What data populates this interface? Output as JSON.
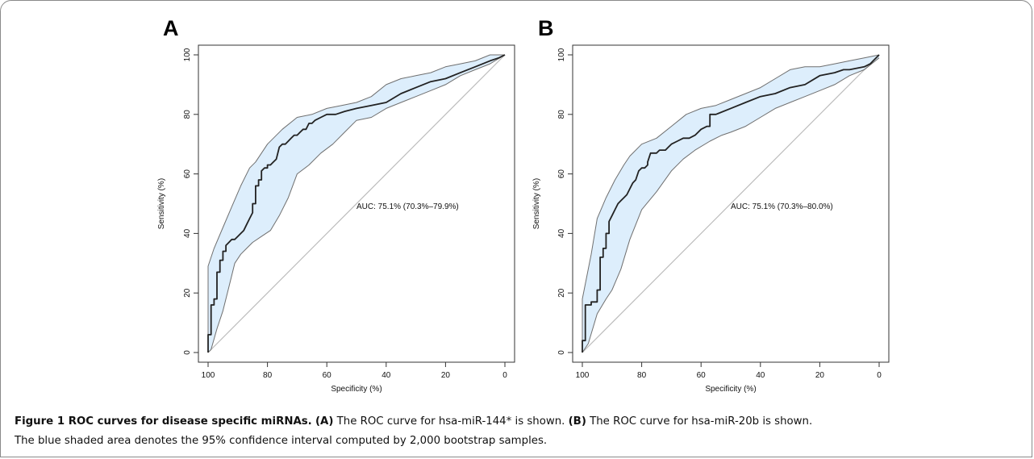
{
  "panels": [
    {
      "letter": "A",
      "auc_label": "AUC: 75.1% (70.3%–79.9%)"
    },
    {
      "letter": "B",
      "auc_label": "AUC: 75.1% (70.3%–80.0%)"
    }
  ],
  "caption": {
    "title": "Figure 1 ROC curves for disease specific miRNAs.",
    "a_ref": "(A)",
    "a_text": " The ROC curve for hsa-miR-144* is shown. ",
    "b_ref": "(B)",
    "b_text": " The ROC curve for hsa-miR-20b is shown.",
    "line2": "The blue shaded area denotes the 95% confidence interval computed by 2,000 bootstrap samples."
  },
  "colors": {
    "band_fill": "#ddeefc",
    "band_edge": "#6f6f6f",
    "curve": "#222222",
    "diagonal": "#bbbbbb"
  },
  "chart_data": [
    {
      "type": "line",
      "title": "",
      "xlabel": "Specificity (%)",
      "ylabel": "Sensitivity (%)",
      "xlim": [
        100,
        0
      ],
      "ylim": [
        0,
        100
      ],
      "x_reversed": true,
      "xticks": [
        100,
        80,
        60,
        40,
        20,
        0
      ],
      "yticks": [
        0,
        20,
        40,
        60,
        80,
        100
      ],
      "annotation": "AUC: 75.1% (70.3%–79.9%)",
      "series": [
        {
          "role": "roc",
          "x": [
            100,
            100,
            99,
            99,
            98,
            98,
            97,
            97,
            96,
            96,
            95,
            95,
            94,
            94,
            93,
            92,
            91,
            90,
            89,
            88,
            87,
            86,
            85,
            85,
            84,
            84,
            83,
            83,
            82,
            82,
            81,
            80,
            80,
            79,
            78,
            77,
            76,
            75,
            74,
            73,
            72,
            71,
            70,
            69,
            68,
            67,
            66,
            65,
            64,
            62,
            60,
            57,
            54,
            50,
            45,
            40,
            35,
            30,
            25,
            20,
            15,
            10,
            5,
            2,
            0
          ],
          "y": [
            0,
            6,
            6,
            16,
            16,
            18,
            18,
            27,
            27,
            31,
            31,
            34,
            34,
            36,
            37,
            38,
            38,
            39,
            40,
            41,
            43,
            45,
            47,
            50,
            50,
            56,
            56,
            58,
            58,
            61,
            62,
            62,
            63,
            63,
            64,
            65,
            69,
            70,
            70,
            71,
            72,
            73,
            73,
            74,
            75,
            75,
            77,
            77,
            78,
            79,
            80,
            80,
            81,
            82,
            83,
            84,
            87,
            89,
            91,
            92,
            94,
            96,
            98,
            99,
            100
          ]
        },
        {
          "role": "ci_upper",
          "x": [
            100,
            100,
            98,
            95,
            92,
            89,
            86,
            84,
            80,
            75,
            70,
            65,
            60,
            55,
            50,
            45,
            40,
            35,
            30,
            25,
            20,
            15,
            10,
            5,
            0
          ],
          "y": [
            0,
            29,
            35,
            42,
            49,
            56,
            62,
            64,
            70,
            75,
            79,
            80,
            82,
            83,
            84,
            86,
            90,
            92,
            93,
            94,
            96,
            97,
            98,
            100,
            100
          ]
        },
        {
          "role": "ci_lower",
          "x": [
            100,
            99,
            97,
            95,
            93,
            91,
            89,
            87,
            85,
            82,
            79,
            76,
            73,
            70,
            66,
            62,
            58,
            54,
            50,
            45,
            40,
            35,
            30,
            25,
            20,
            15,
            10,
            5,
            0
          ],
          "y": [
            0,
            1,
            8,
            14,
            22,
            30,
            33,
            35,
            37,
            39,
            41,
            46,
            52,
            60,
            63,
            67,
            70,
            74,
            78,
            79,
            82,
            84,
            86,
            88,
            90,
            93,
            95,
            97,
            100
          ]
        }
      ]
    },
    {
      "type": "line",
      "title": "",
      "xlabel": "Specificity (%)",
      "ylabel": "Sensitivity (%)",
      "xlim": [
        100,
        0
      ],
      "ylim": [
        0,
        100
      ],
      "x_reversed": true,
      "xticks": [
        100,
        80,
        60,
        40,
        20,
        0
      ],
      "yticks": [
        0,
        20,
        40,
        60,
        80,
        100
      ],
      "annotation": "AUC: 75.1% (70.3%–80.0%)",
      "series": [
        {
          "role": "roc",
          "x": [
            100,
            100,
            99,
            99,
            97,
            97,
            95,
            95,
            94,
            94,
            93,
            93,
            92,
            92,
            91,
            91,
            90,
            89,
            88,
            87,
            86,
            85,
            84,
            83,
            82,
            82,
            81,
            80,
            79,
            78,
            78,
            77,
            76,
            75,
            74,
            73,
            72,
            71,
            70,
            68,
            66,
            64,
            62,
            60,
            58,
            57,
            57,
            55,
            50,
            45,
            40,
            35,
            30,
            25,
            20,
            15,
            12,
            10,
            5,
            3,
            2,
            0
          ],
          "y": [
            0,
            4,
            4,
            16,
            16,
            17,
            17,
            21,
            21,
            32,
            32,
            35,
            35,
            40,
            40,
            44,
            46,
            48,
            50,
            51,
            52,
            53,
            55,
            57,
            58,
            58,
            61,
            62,
            62,
            63,
            64,
            67,
            67,
            67,
            68,
            68,
            68,
            69,
            70,
            71,
            72,
            72,
            73,
            75,
            76,
            76,
            80,
            80,
            82,
            84,
            86,
            87,
            89,
            90,
            93,
            94,
            95,
            95,
            96,
            97,
            98,
            100
          ]
        },
        {
          "role": "ci_upper",
          "x": [
            100,
            100,
            97,
            95,
            92,
            89,
            86,
            84,
            80,
            75,
            70,
            65,
            60,
            55,
            50,
            45,
            40,
            35,
            30,
            25,
            20,
            15,
            10,
            5,
            0
          ],
          "y": [
            0,
            18,
            33,
            45,
            52,
            58,
            63,
            66,
            70,
            72,
            76,
            80,
            82,
            83,
            85,
            87,
            89,
            92,
            95,
            96,
            96,
            97,
            98,
            99,
            100
          ]
        },
        {
          "role": "ci_lower",
          "x": [
            100,
            98,
            95,
            92,
            90,
            87,
            84,
            80,
            75,
            70,
            66,
            62,
            57,
            53,
            50,
            45,
            40,
            35,
            30,
            25,
            20,
            15,
            10,
            5,
            0
          ],
          "y": [
            0,
            3,
            13,
            18,
            21,
            28,
            38,
            48,
            54,
            61,
            65,
            68,
            71,
            73,
            74,
            76,
            79,
            82,
            84,
            86,
            88,
            90,
            93,
            95,
            99
          ]
        }
      ]
    }
  ]
}
